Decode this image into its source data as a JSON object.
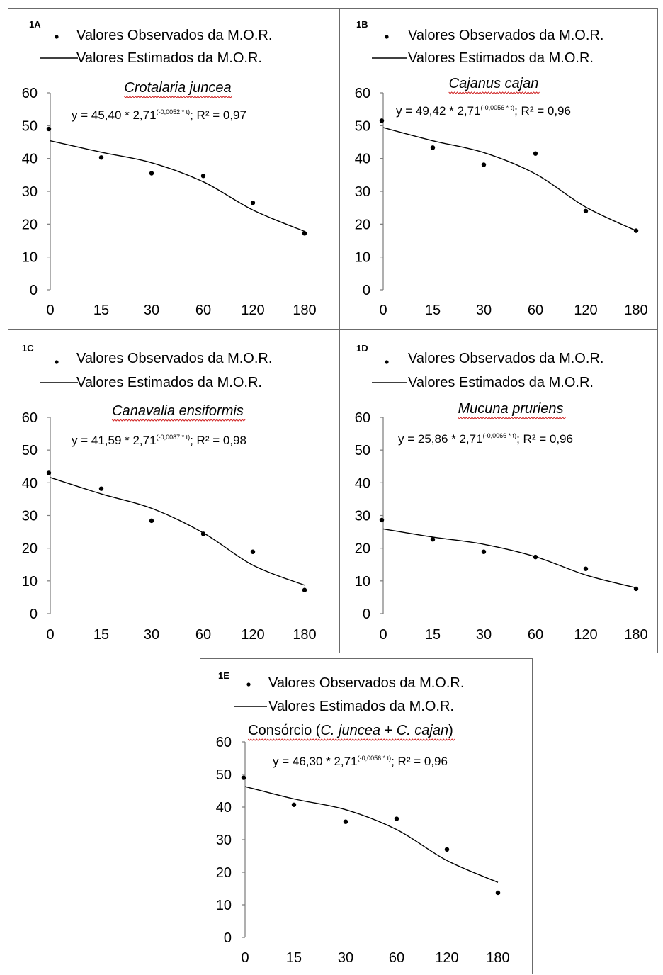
{
  "chart_data": [
    {
      "type": "line",
      "panel_label": "1A",
      "title": "Crotalaria juncea",
      "title_italic": true,
      "legend": {
        "observed": "Valores Observados da M.O.R.",
        "estimated": "Valores Estimados da M.O.R."
      },
      "equation": {
        "prefix": "y = 45,40 * 2,71",
        "superscript": "(-0,0052 * t)",
        "suffix": "; R² = 0,97"
      },
      "categories": [
        "0",
        "15",
        "30",
        "60",
        "120",
        "180"
      ],
      "yticks": [
        0,
        10,
        20,
        30,
        40,
        50,
        60
      ],
      "ylim": [
        0,
        60
      ],
      "series": [
        {
          "name": "Valores Observados da M.O.R.",
          "kind": "scatter",
          "values": [
            49,
            40.3,
            35.5,
            34.7,
            26.5,
            17.2
          ]
        },
        {
          "name": "Valores Estimados da M.O.R.",
          "kind": "line",
          "values": [
            45.4,
            41.9,
            38.7,
            32.9,
            24.3,
            17.8
          ]
        }
      ]
    },
    {
      "type": "line",
      "panel_label": "1B",
      "title": "Cajanus cajan",
      "title_italic": true,
      "legend": {
        "observed": "Valores Observados da M.O.R.",
        "estimated": "Valores Estimados da M.O.R."
      },
      "equation": {
        "prefix": "y = 49,42 * 2,71",
        "superscript": "(-0,0056 * t)",
        "suffix": "; R² = 0,96"
      },
      "categories": [
        "0",
        "15",
        "30",
        "60",
        "120",
        "180"
      ],
      "yticks": [
        0,
        10,
        20,
        30,
        40,
        50,
        60
      ],
      "ylim": [
        0,
        60
      ],
      "series": [
        {
          "name": "Valores Observados da M.O.R.",
          "kind": "scatter",
          "values": [
            51.5,
            43.3,
            38.1,
            41.5,
            24,
            18
          ]
        },
        {
          "name": "Valores Estimados da M.O.R.",
          "kind": "line",
          "values": [
            49.4,
            45.4,
            41.8,
            35.3,
            25.2,
            18
          ]
        }
      ]
    },
    {
      "type": "line",
      "panel_label": "1C",
      "title": "Canavalia ensiformis",
      "title_italic": true,
      "legend": {
        "observed": "Valores Observados da M.O.R.",
        "estimated": "Valores Estimados da M.O.R."
      },
      "equation": {
        "prefix": "y = 41,59 * 2,71",
        "superscript": "(-0,0087 * t)",
        "suffix": "; R² = 0,98"
      },
      "categories": [
        "0",
        "15",
        "30",
        "60",
        "120",
        "180"
      ],
      "yticks": [
        0,
        10,
        20,
        30,
        40,
        50,
        60
      ],
      "ylim": [
        0,
        60
      ],
      "series": [
        {
          "name": "Valores Observados da M.O.R.",
          "kind": "scatter",
          "values": [
            43,
            38.2,
            28.4,
            24.4,
            18.9,
            7.2
          ]
        },
        {
          "name": "Valores Estimados da M.O.R.",
          "kind": "line",
          "values": [
            41.6,
            36.6,
            32.2,
            24.7,
            14.8,
            8.7
          ]
        }
      ]
    },
    {
      "type": "line",
      "panel_label": "1D",
      "title": "Mucuna pruriens",
      "title_italic": true,
      "legend": {
        "observed": "Valores Observados da M.O.R.",
        "estimated": "Valores Estimados da M.O.R."
      },
      "equation": {
        "prefix": "y = 25,86 * 2,71",
        "superscript": "(-0,0066 * t)",
        "suffix": "; R² = 0,96"
      },
      "categories": [
        "0",
        "15",
        "30",
        "60",
        "120",
        "180"
      ],
      "yticks": [
        0,
        10,
        20,
        30,
        40,
        50,
        60
      ],
      "ylim": [
        0,
        60
      ],
      "series": [
        {
          "name": "Valores Observados da M.O.R.",
          "kind": "scatter",
          "values": [
            28.6,
            22.7,
            18.9,
            17.3,
            13.7,
            7.6
          ]
        },
        {
          "name": "Valores Estimados da M.O.R.",
          "kind": "line",
          "values": [
            25.9,
            23.4,
            21.2,
            17.4,
            11.8,
            7.9
          ]
        }
      ]
    },
    {
      "type": "line",
      "panel_label": "1E",
      "title": "Consórcio (C. juncea + C. cajan)",
      "title_parts": [
        {
          "text": "Consórcio (",
          "italic": false
        },
        {
          "text": "C. juncea",
          "italic": true
        },
        {
          "text": " + ",
          "italic": false
        },
        {
          "text": "C. cajan",
          "italic": true
        },
        {
          "text": ")",
          "italic": false
        }
      ],
      "legend": {
        "observed": "Valores Observados da M.O.R.",
        "estimated": "Valores Estimados da M.O.R."
      },
      "equation": {
        "prefix": "y = 46,30 * 2,71",
        "superscript": "(-0,0056 * t)",
        "suffix": "; R² = 0,96"
      },
      "categories": [
        "0",
        "15",
        "30",
        "60",
        "120",
        "180"
      ],
      "yticks": [
        0,
        10,
        20,
        30,
        40,
        50,
        60
      ],
      "ylim": [
        0,
        60
      ],
      "series": [
        {
          "name": "Valores Observados da M.O.R.",
          "kind": "scatter",
          "values": [
            49,
            40.7,
            35.5,
            36.4,
            27,
            13.7
          ]
        },
        {
          "name": "Valores Estimados da M.O.R.",
          "kind": "line",
          "values": [
            46.3,
            42.5,
            39.2,
            33.1,
            23.6,
            16.9
          ]
        }
      ]
    }
  ]
}
